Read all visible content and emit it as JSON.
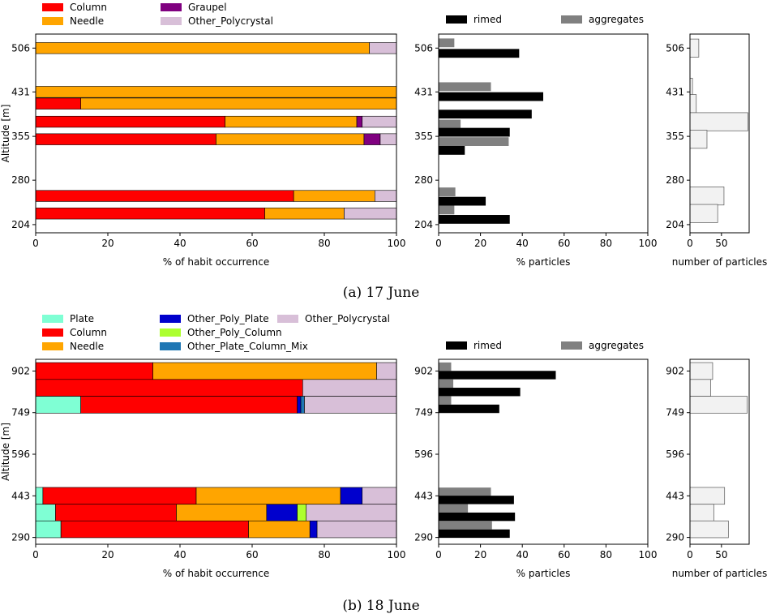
{
  "figure": {
    "caption_a": "(a) 17 June",
    "caption_b": "(b) 18 June"
  },
  "chart_data": [
    {
      "id": "a_habit",
      "type": "bar",
      "orientation": "horizontal",
      "stacked": true,
      "xlabel": "% of habit occurrence",
      "ylabel": "Altitude [m]",
      "xlim": [
        0,
        100
      ],
      "xticks": [
        0,
        20,
        40,
        60,
        80,
        100
      ],
      "ylim": [
        190,
        530
      ],
      "yticks": [
        204,
        280,
        355,
        431,
        506
      ],
      "bar_height": 19,
      "legend": [
        {
          "name": "Column",
          "color": "#ff0000"
        },
        {
          "name": "Needle",
          "color": "#ffa500"
        },
        {
          "name": "Graupel",
          "color": "#800080"
        },
        {
          "name": "Other_Polycrystal",
          "color": "#d8bfd8"
        }
      ],
      "rows": [
        {
          "y": 506,
          "segments": [
            {
              "class": "Needle",
              "value": 92.5
            },
            {
              "class": "Other_Polycrystal",
              "value": 7.5
            }
          ]
        },
        {
          "y": 431,
          "segments": [
            {
              "class": "Needle",
              "value": 100
            }
          ]
        },
        {
          "y": 411,
          "segments": [
            {
              "class": "Column",
              "value": 12.5
            },
            {
              "class": "Needle",
              "value": 87.5
            }
          ]
        },
        {
          "y": 380,
          "segments": [
            {
              "class": "Column",
              "value": 52.5
            },
            {
              "class": "Needle",
              "value": 36.5
            },
            {
              "class": "Graupel",
              "value": 1.5
            },
            {
              "class": "Other_Polycrystal",
              "value": 9.5
            }
          ]
        },
        {
          "y": 350,
          "segments": [
            {
              "class": "Column",
              "value": 50
            },
            {
              "class": "Needle",
              "value": 41
            },
            {
              "class": "Graupel",
              "value": 4.5
            },
            {
              "class": "Other_Polycrystal",
              "value": 4.5
            }
          ]
        },
        {
          "y": 253,
          "segments": [
            {
              "class": "Column",
              "value": 71.5
            },
            {
              "class": "Needle",
              "value": 22.5
            },
            {
              "class": "Other_Polycrystal",
              "value": 6
            }
          ]
        },
        {
          "y": 223,
          "segments": [
            {
              "class": "Column",
              "value": 63.5
            },
            {
              "class": "Needle",
              "value": 22
            },
            {
              "class": "Other_Polycrystal",
              "value": 14.5
            }
          ]
        }
      ]
    },
    {
      "id": "a_rimed",
      "type": "bar",
      "orientation": "horizontal",
      "xlabel": "% particles",
      "xlim": [
        0,
        100
      ],
      "xticks": [
        0,
        20,
        40,
        60,
        80,
        100
      ],
      "ylim": [
        190,
        530
      ],
      "yticks": [
        204,
        280,
        355,
        431,
        506
      ],
      "bar_height": 15,
      "legend": [
        {
          "name": "rimed",
          "color": "#000000"
        },
        {
          "name": "aggregates",
          "color": "#808080"
        }
      ],
      "rows": [
        {
          "y": 515,
          "series": "aggregates",
          "value": 7.5
        },
        {
          "y": 497,
          "series": "rimed",
          "value": 38.5
        },
        {
          "y": 440,
          "series": "aggregates",
          "value": 25
        },
        {
          "y": 423,
          "series": "rimed",
          "value": 50
        },
        {
          "y": 393,
          "series": "rimed",
          "value": 44.5
        },
        {
          "y": 376,
          "series": "aggregates",
          "value": 10.5
        },
        {
          "y": 362,
          "series": "rimed",
          "value": 34
        },
        {
          "y": 346,
          "series": "aggregates",
          "value": 33.5
        },
        {
          "y": 331,
          "series": "rimed",
          "value": 12.5
        },
        {
          "y": 260,
          "series": "aggregates",
          "value": 8
        },
        {
          "y": 244,
          "series": "rimed",
          "value": 22.5
        },
        {
          "y": 229,
          "series": "aggregates",
          "value": 7.5
        },
        {
          "y": 213,
          "series": "rimed",
          "value": 34
        }
      ]
    },
    {
      "id": "a_count",
      "type": "bar",
      "orientation": "horizontal",
      "xlabel": "number of particles",
      "xlim": [
        0,
        94
      ],
      "xticks": [
        0,
        50
      ],
      "ylim": [
        190,
        530
      ],
      "yticks": [
        204,
        280,
        355,
        431,
        506
      ],
      "bar_height": 31,
      "rows": [
        {
          "y": 506,
          "value": 14
        },
        {
          "y": 439,
          "value": 4
        },
        {
          "y": 411,
          "value": 10
        },
        {
          "y": 380,
          "value": 92
        },
        {
          "y": 350,
          "value": 27
        },
        {
          "y": 253,
          "value": 54
        },
        {
          "y": 223,
          "value": 44
        }
      ]
    },
    {
      "id": "b_habit",
      "type": "bar",
      "orientation": "horizontal",
      "stacked": true,
      "xlabel": "% of habit occurrence",
      "ylabel": "Altitude [m]",
      "xlim": [
        0,
        100
      ],
      "xticks": [
        0,
        20,
        40,
        60,
        80,
        100
      ],
      "ylim": [
        265,
        945
      ],
      "yticks": [
        290,
        443,
        596,
        749,
        902
      ],
      "bar_height": 62,
      "legend": [
        {
          "name": "Plate",
          "color": "#7fffd4"
        },
        {
          "name": "Column",
          "color": "#ff0000"
        },
        {
          "name": "Needle",
          "color": "#ffa500"
        },
        {
          "name": "Other_Poly_Plate",
          "color": "#0000cd"
        },
        {
          "name": "Other_Poly_Column",
          "color": "#adff2f"
        },
        {
          "name": "Other_Plate_Column_Mix",
          "color": "#1f77b4"
        },
        {
          "name": "Other_Polycrystal",
          "color": "#d8bfd8"
        }
      ],
      "rows": [
        {
          "y": 902,
          "segments": [
            {
              "class": "Column",
              "value": 32.5
            },
            {
              "class": "Needle",
              "value": 62
            },
            {
              "class": "Other_Polycrystal",
              "value": 5.5
            }
          ]
        },
        {
          "y": 840,
          "segments": [
            {
              "class": "Column",
              "value": 74
            },
            {
              "class": "Other_Polycrystal",
              "value": 26
            }
          ]
        },
        {
          "y": 778,
          "segments": [
            {
              "class": "Plate",
              "value": 12.5
            },
            {
              "class": "Column",
              "value": 60
            },
            {
              "class": "Other_Poly_Plate",
              "value": 1
            },
            {
              "class": "Other_Plate_Column_Mix",
              "value": 1
            },
            {
              "class": "Other_Polycrystal",
              "value": 25.5
            }
          ]
        },
        {
          "y": 443,
          "segments": [
            {
              "class": "Plate",
              "value": 2
            },
            {
              "class": "Column",
              "value": 42.5
            },
            {
              "class": "Needle",
              "value": 40
            },
            {
              "class": "Other_Poly_Plate",
              "value": 6
            },
            {
              "class": "Other_Polycrystal",
              "value": 9.5
            }
          ]
        },
        {
          "y": 381,
          "segments": [
            {
              "class": "Plate",
              "value": 5.5
            },
            {
              "class": "Column",
              "value": 33.5
            },
            {
              "class": "Needle",
              "value": 25
            },
            {
              "class": "Other_Poly_Plate",
              "value": 8.5
            },
            {
              "class": "Other_Poly_Column",
              "value": 2.5
            },
            {
              "class": "Other_Polycrystal",
              "value": 25
            }
          ]
        },
        {
          "y": 320,
          "segments": [
            {
              "class": "Plate",
              "value": 7
            },
            {
              "class": "Column",
              "value": 52
            },
            {
              "class": "Needle",
              "value": 17
            },
            {
              "class": "Other_Poly_Plate",
              "value": 2
            },
            {
              "class": "Other_Polycrystal",
              "value": 22
            }
          ]
        }
      ]
    },
    {
      "id": "b_rimed",
      "type": "bar",
      "orientation": "horizontal",
      "xlabel": "% particles",
      "xlim": [
        0,
        100
      ],
      "xticks": [
        0,
        20,
        40,
        60,
        80,
        100
      ],
      "ylim": [
        265,
        945
      ],
      "yticks": [
        290,
        443,
        596,
        749,
        902
      ],
      "bar_height": 31,
      "legend": [
        {
          "name": "rimed",
          "color": "#000000"
        },
        {
          "name": "aggregates",
          "color": "#808080"
        }
      ],
      "rows": [
        {
          "y": 918,
          "series": "aggregates",
          "value": 6
        },
        {
          "y": 887,
          "series": "rimed",
          "value": 56
        },
        {
          "y": 856,
          "series": "aggregates",
          "value": 7
        },
        {
          "y": 825,
          "series": "rimed",
          "value": 39
        },
        {
          "y": 794,
          "series": "aggregates",
          "value": 6
        },
        {
          "y": 763,
          "series": "rimed",
          "value": 29
        },
        {
          "y": 458,
          "series": "aggregates",
          "value": 25
        },
        {
          "y": 428,
          "series": "rimed",
          "value": 36
        },
        {
          "y": 397,
          "series": "aggregates",
          "value": 14
        },
        {
          "y": 366,
          "series": "rimed",
          "value": 36.5
        },
        {
          "y": 335,
          "series": "aggregates",
          "value": 25.5
        },
        {
          "y": 304,
          "series": "rimed",
          "value": 34
        }
      ]
    },
    {
      "id": "b_count",
      "type": "bar",
      "orientation": "horizontal",
      "xlabel": "number of particles",
      "xlim": [
        0,
        94
      ],
      "xticks": [
        0,
        50
      ],
      "ylim": [
        265,
        945
      ],
      "yticks": [
        290,
        443,
        596,
        749,
        902
      ],
      "bar_height": 62,
      "rows": [
        {
          "y": 902,
          "value": 36
        },
        {
          "y": 840,
          "value": 33
        },
        {
          "y": 778,
          "value": 91
        },
        {
          "y": 443,
          "value": 55
        },
        {
          "y": 381,
          "value": 38
        },
        {
          "y": 320,
          "value": 61
        }
      ]
    }
  ]
}
